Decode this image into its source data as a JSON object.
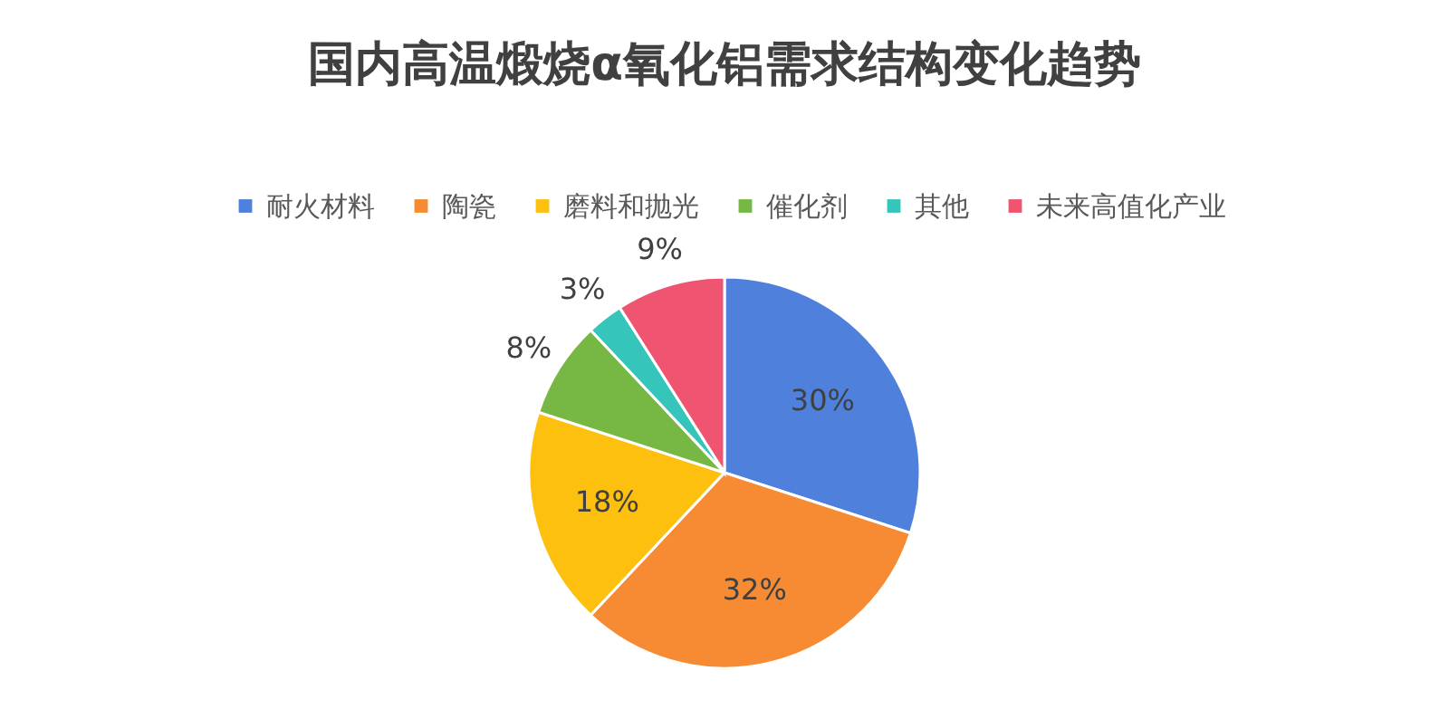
{
  "chart_data": {
    "type": "pie",
    "title": "国内高温煅烧α氧化铝需求结构变化趋势",
    "categories": [
      "耐火材料",
      "陶瓷",
      "磨料和抛光",
      "催化剂",
      "其他",
      "未来高值化产业"
    ],
    "values": [
      30,
      32,
      18,
      8,
      3,
      9
    ],
    "colors": [
      "#4f81dc",
      "#f68b33",
      "#fdc00f",
      "#76b843",
      "#36c5bb",
      "#ef5570"
    ],
    "value_labels": [
      "30%",
      "32%",
      "18%",
      "8%",
      "3%",
      "9%"
    ],
    "legend": "top"
  }
}
